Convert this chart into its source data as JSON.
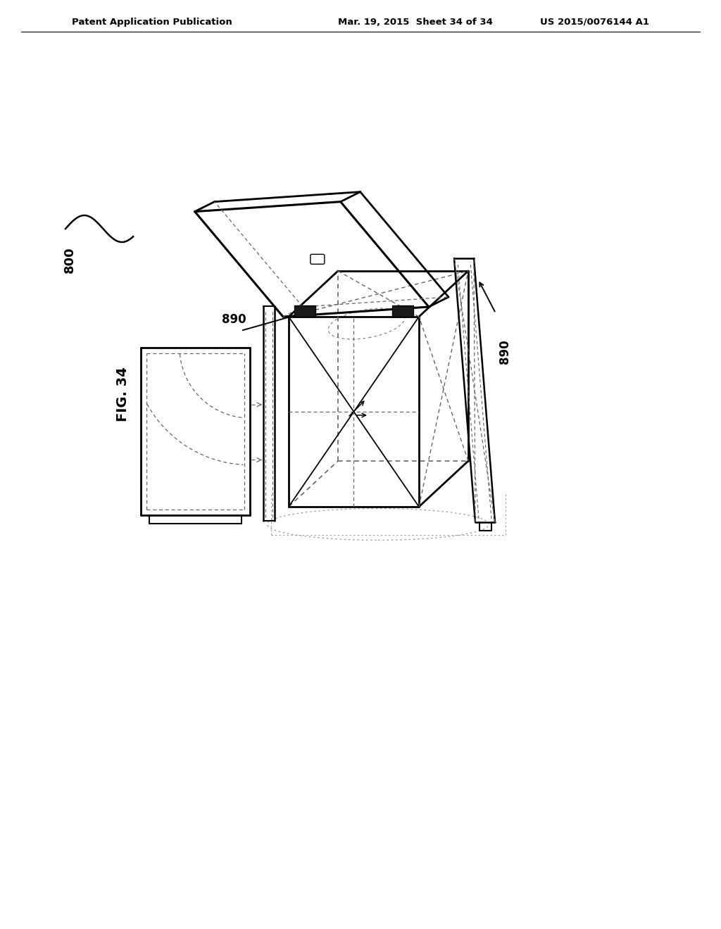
{
  "header_left": "Patent Application Publication",
  "header_mid": "Mar. 19, 2015  Sheet 34 of 34",
  "header_right": "US 2015/0076144 A1",
  "fig_label": "FIG. 34",
  "label_890_left": "890",
  "label_890_right": "890",
  "label_800": "800",
  "bg_color": "#ffffff",
  "line_color": "#000000",
  "dark_fill": "#1a1a1a",
  "gray_line": "#666666"
}
